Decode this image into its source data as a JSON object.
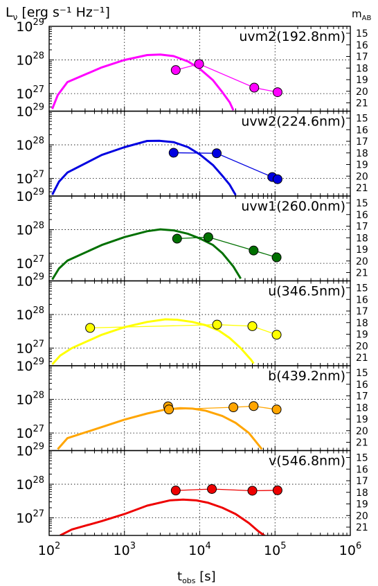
{
  "y_label_main": "L",
  "y_label_sub": "ν",
  "y_label_units": " [erg s⁻¹ Hz⁻¹]",
  "right_label_main": "m",
  "right_label_sub": "AB",
  "x_label_main": "t",
  "x_label_sub": "obs",
  "x_label_units": " [s]",
  "chart_data": {
    "type": "line",
    "x_scale": "log",
    "y_scale": "log",
    "xlim": [
      100,
      1000000
    ],
    "ylim": [
      3e+26,
      1e+29
    ],
    "x_ticks": [
      {
        "value": 100,
        "base": "10",
        "exp": "2"
      },
      {
        "value": 1000,
        "base": "10",
        "exp": "3"
      },
      {
        "value": 10000,
        "base": "10",
        "exp": "4"
      },
      {
        "value": 100000,
        "base": "10",
        "exp": "5"
      },
      {
        "value": 1000000,
        "base": "10",
        "exp": "6"
      }
    ],
    "y_ticks": [
      {
        "value": 1e+27,
        "base": "10",
        "exp": "27"
      },
      {
        "value": 1e+28,
        "base": "10",
        "exp": "28"
      },
      {
        "value": 1e+29,
        "base": "10",
        "exp": "29"
      }
    ],
    "right_ticks": [
      "15",
      "16",
      "17",
      "18",
      "19",
      "20",
      "21"
    ],
    "grid": true,
    "panels": [
      {
        "filter": "uvm2(192.8nm)",
        "color": "#ff00ff",
        "points": [
          [
            4800,
            5e+27
          ],
          [
            9800,
            7.6e+27
          ],
          [
            53000,
            1.5e+27
          ],
          [
            108000,
            1.1e+27
          ]
        ],
        "model": [
          [
            110,
            3.5e+26
          ],
          [
            130,
            9e+26
          ],
          [
            175,
            2.2e+27
          ],
          [
            500,
            6e+27
          ],
          [
            1000,
            1e+28
          ],
          [
            2000,
            1.4e+28
          ],
          [
            3000,
            1.45e+28
          ],
          [
            4500,
            1.3e+28
          ],
          [
            7000,
            9e+27
          ],
          [
            10000,
            5.5e+27
          ],
          [
            15000,
            2.5e+27
          ],
          [
            20000,
            1.1e+27
          ],
          [
            25000,
            5.5e+26
          ],
          [
            28000,
            3.2e+26
          ]
        ]
      },
      {
        "filter": "uvw2(224.6nm)",
        "color": "#0000e0",
        "points": [
          [
            4500,
            5.8e+27
          ],
          [
            16800,
            5.6e+27
          ],
          [
            92000,
            1.1e+27
          ],
          [
            108000,
            9.5e+26
          ]
        ],
        "model": [
          [
            110,
            3.3e+26
          ],
          [
            135,
            8e+26
          ],
          [
            175,
            1.5e+27
          ],
          [
            500,
            5e+27
          ],
          [
            1000,
            8.5e+27
          ],
          [
            2000,
            1.3e+28
          ],
          [
            2900,
            1.32e+28
          ],
          [
            4500,
            1.2e+28
          ],
          [
            7000,
            8.5e+27
          ],
          [
            10000,
            5.2e+27
          ],
          [
            15000,
            2.5e+27
          ],
          [
            20000,
            1.2e+27
          ],
          [
            25000,
            6.5e+26
          ],
          [
            30000,
            3.2e+26
          ]
        ]
      },
      {
        "filter": "uvw1(260.0nm)",
        "color": "#007000",
        "points": [
          [
            5000,
            5.4e+27
          ],
          [
            13000,
            6e+27
          ],
          [
            52000,
            2.4e+27
          ],
          [
            105000,
            1.5e+27
          ]
        ],
        "model": [
          [
            110,
            3.3e+26
          ],
          [
            135,
            7e+26
          ],
          [
            175,
            1.2e+27
          ],
          [
            500,
            3.5e+27
          ],
          [
            1000,
            6e+27
          ],
          [
            2000,
            9e+27
          ],
          [
            3000,
            1.02e+28
          ],
          [
            4500,
            9.5e+27
          ],
          [
            7000,
            7.5e+27
          ],
          [
            10000,
            5.5e+27
          ],
          [
            15000,
            3.5e+27
          ],
          [
            20000,
            2e+27
          ],
          [
            28000,
            8e+26
          ],
          [
            35000,
            3.5e+26
          ]
        ]
      },
      {
        "filter": "u(346.5nm)",
        "color": "#ffff00",
        "points": [
          [
            350,
            4e+27
          ],
          [
            17000,
            5e+27
          ],
          [
            50000,
            4.5e+27
          ],
          [
            105000,
            2.5e+27
          ]
        ],
        "model": [
          [
            110,
            3.3e+26
          ],
          [
            140,
            6e+26
          ],
          [
            200,
            1e+27
          ],
          [
            500,
            2.5e+27
          ],
          [
            1000,
            4.2e+27
          ],
          [
            2000,
            6e+27
          ],
          [
            3500,
            7.2e+27
          ],
          [
            5000,
            7e+27
          ],
          [
            8000,
            6e+27
          ],
          [
            12000,
            4.8e+27
          ],
          [
            18000,
            3.3e+27
          ],
          [
            25000,
            2e+27
          ],
          [
            35000,
            1e+27
          ],
          [
            48000,
            4.5e+26
          ],
          [
            52000,
            3.5e+26
          ]
        ]
      },
      {
        "filter": "b(439.2nm)",
        "color": "#ffa500",
        "points": [
          [
            3800,
            6.2e+27
          ],
          [
            3900,
            5e+27
          ],
          [
            28000,
            5.8e+27
          ],
          [
            52000,
            6.3e+27
          ],
          [
            105000,
            5e+27
          ]
        ],
        "model": [
          [
            130,
            3.3e+26
          ],
          [
            175,
            7e+26
          ],
          [
            500,
            1.5e+27
          ],
          [
            1000,
            2.5e+27
          ],
          [
            2000,
            3.8e+27
          ],
          [
            3500,
            5e+27
          ],
          [
            5500,
            5.5e+27
          ],
          [
            8000,
            5.3e+27
          ],
          [
            12000,
            4.6e+27
          ],
          [
            20000,
            3.2e+27
          ],
          [
            30000,
            2e+27
          ],
          [
            45000,
            1e+27
          ],
          [
            60000,
            4.5e+26
          ],
          [
            67000,
            3.3e+26
          ]
        ]
      },
      {
        "filter": "v(546.8nm)",
        "color": "#ee0000",
        "points": [
          [
            4800,
            6.5e+27
          ],
          [
            14500,
            7.2e+27
          ],
          [
            50000,
            6.4e+27
          ],
          [
            108000,
            6.6e+27
          ]
        ],
        "model": [
          [
            140,
            3e+26
          ],
          [
            200,
            4.5e+26
          ],
          [
            500,
            8e+26
          ],
          [
            1000,
            1.3e+27
          ],
          [
            2000,
            2.3e+27
          ],
          [
            4000,
            3.3e+27
          ],
          [
            6000,
            3.5e+27
          ],
          [
            9000,
            3.3e+27
          ],
          [
            13000,
            2.8e+27
          ],
          [
            20000,
            2e+27
          ],
          [
            30000,
            1.3e+27
          ],
          [
            45000,
            7e+26
          ],
          [
            60000,
            4e+26
          ],
          [
            75000,
            2.8e+26
          ]
        ]
      }
    ]
  }
}
